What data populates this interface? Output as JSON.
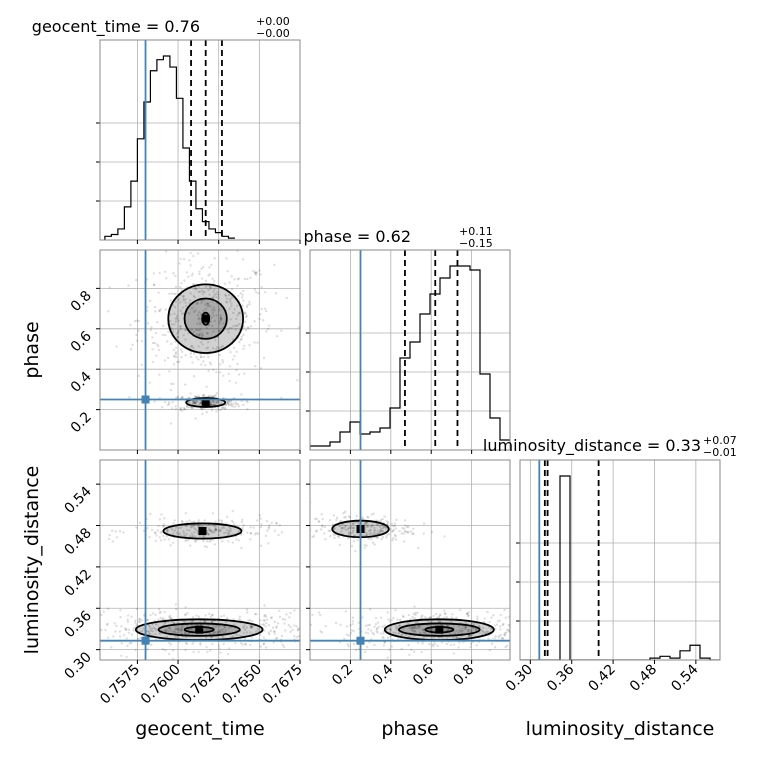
{
  "chart_data": {
    "type": "corner",
    "parameters": [
      "geocent_time",
      "phase",
      "luminosity_distance"
    ],
    "truths": {
      "geocent_time": 0.758,
      "phase": 0.25,
      "luminosity_distance": 0.313
    },
    "axes": {
      "geocent_time": {
        "range": [
          0.7552,
          0.7675
        ],
        "ticks": [
          "0.7575",
          "0.7600",
          "0.7625",
          "0.7650",
          "0.7675"
        ],
        "tick_values": [
          0.7575,
          0.76,
          0.7625,
          0.765,
          0.7675
        ]
      },
      "phase": {
        "range": [
          0.0,
          0.99
        ],
        "ticks": [
          "0.2",
          "0.4",
          "0.6",
          "0.8"
        ],
        "tick_values": [
          0.2,
          0.4,
          0.6,
          0.8
        ]
      },
      "luminosity_distance": {
        "range": [
          0.285,
          0.575
        ],
        "ticks": [
          "0.30",
          "0.36",
          "0.42",
          "0.48",
          "0.54"
        ],
        "tick_values": [
          0.3,
          0.36,
          0.42,
          0.48,
          0.54
        ]
      }
    },
    "titles": [
      {
        "param": "geocent_time",
        "text": "geocent_time = 0.76",
        "sup": "+0.00",
        "sub": "−0.00"
      },
      {
        "param": "phase",
        "text": "phase = 0.62",
        "sup": "+0.11",
        "sub": "−0.15"
      },
      {
        "param": "luminosity_distance",
        "text": "luminosity_distance = 0.33",
        "sup": "+0.07",
        "sub": "−0.01"
      }
    ],
    "quantiles": {
      "geocent_time": [
        0.7608,
        0.7617,
        0.7627
      ],
      "phase": [
        0.47,
        0.62,
        0.73
      ],
      "luminosity_distance": [
        0.321,
        0.325,
        0.399
      ]
    },
    "histograms": {
      "geocent_time": {
        "x_start": 0.7555,
        "bin_width": 0.0004,
        "counts": [
          2,
          3,
          6,
          18,
          32,
          55,
          75,
          92,
          98,
          100,
          94,
          77,
          50,
          32,
          17,
          10,
          6,
          4,
          2,
          1
        ]
      },
      "phase": {
        "x_start": 0.0,
        "bin_width": 0.0495,
        "counts": [
          2,
          2,
          4,
          9,
          14,
          8,
          9,
          11,
          21,
          46,
          54,
          68,
          78,
          86,
          92,
          92,
          90,
          38,
          16,
          5
        ]
      },
      "luminosity_distance": {
        "x_start": 0.285,
        "bin_width": 0.0145,
        "counts": [
          0,
          0,
          0,
          0,
          100,
          0,
          0,
          0,
          0,
          0,
          0,
          0,
          0,
          1,
          2,
          1,
          5,
          8,
          1,
          0
        ]
      }
    },
    "contour_sets": {
      "phase_vs_geocent_time": {
        "centers": [
          {
            "x": 0.7617,
            "y": 0.65,
            "rx": [
              0.00022,
              0.0013,
              0.0023
            ],
            "ry": [
              0.03,
              0.1,
              0.17
            ]
          },
          {
            "x": 0.7617,
            "y": 0.235,
            "rx": [
              0.0012
            ],
            "ry": [
              0.022
            ]
          }
        ]
      },
      "luminosity_distance_vs_geocent_time": {
        "centers": [
          {
            "x": 0.7613,
            "y": 0.329,
            "rx": [
              0.0009,
              0.0025,
              0.0039
            ],
            "ry": [
              0.004,
              0.009,
              0.015
            ]
          },
          {
            "x": 0.7615,
            "y": 0.472,
            "rx": [
              0.0024
            ],
            "ry": [
              0.011
            ]
          }
        ]
      },
      "luminosity_distance_vs_phase": {
        "centers": [
          {
            "x": 0.64,
            "y": 0.329,
            "rx": [
              0.07,
              0.2,
              0.27
            ],
            "ry": [
              0.004,
              0.009,
              0.015
            ]
          },
          {
            "x": 0.25,
            "y": 0.475,
            "rx": [
              0.14
            ],
            "ry": [
              0.012
            ]
          }
        ]
      }
    },
    "grid": true
  },
  "axis_labels": {
    "geocent_time": "geocent_time",
    "phase": "phase",
    "luminosity_distance": "luminosity_distance"
  },
  "colors": {
    "truth": "#4682b4",
    "line": "#000000",
    "grid": "#b0b0b0",
    "frame": "#888888",
    "scatter": "#000000"
  }
}
